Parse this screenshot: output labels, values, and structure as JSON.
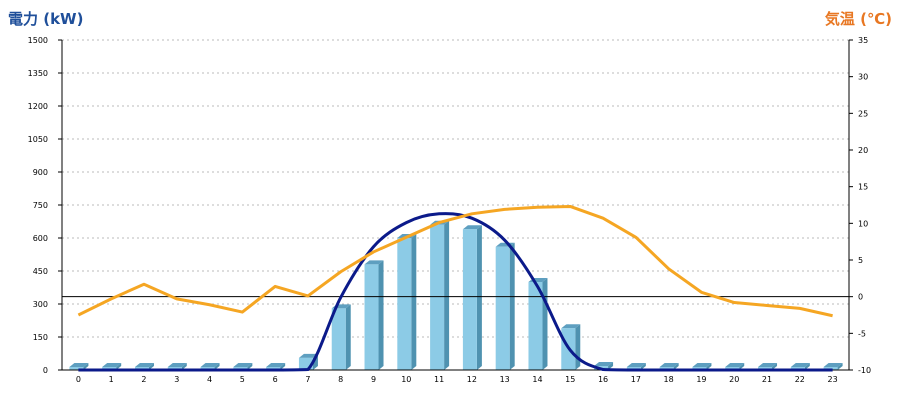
{
  "colors": {
    "left_title": "#1f4f9a",
    "right_title": "#e87722",
    "bar_front": "#8ccbe6",
    "bar_side": "#4f92b0",
    "bar_top": "#5e9fc0",
    "power_line": "#0b1a8a",
    "temp_line": "#f5a623",
    "grid": "#bbbbbb",
    "axis": "#000000"
  },
  "chart_data": {
    "type": "bar",
    "y_title_left": "電力 (kW)",
    "y_title_right": "気温 (℃)",
    "categories": [
      "0",
      "1",
      "2",
      "3",
      "4",
      "5",
      "6",
      "7",
      "8",
      "9",
      "10",
      "11",
      "12",
      "13",
      "14",
      "15",
      "16",
      "17",
      "18",
      "19",
      "20",
      "21",
      "22",
      "23"
    ],
    "ylim_left": [
      0,
      1500
    ],
    "yticks_left": [
      "1500",
      "1350",
      "1200",
      "1050",
      "900",
      "750",
      "600",
      "450",
      "300",
      "150",
      "0"
    ],
    "ylim_right": [
      -10,
      35
    ],
    "yticks_right": [
      "35",
      "30",
      "25",
      "20",
      "15",
      "10",
      "5",
      "0",
      "-5",
      "-10"
    ],
    "grid": true,
    "zero_line_right": 0,
    "series": [
      {
        "kind": "bar",
        "axis": "left",
        "values": [
          0,
          0,
          0,
          0,
          0,
          0,
          0,
          55,
          280,
          480,
          600,
          660,
          640,
          560,
          400,
          190,
          18,
          0,
          0,
          0,
          0,
          0,
          0,
          0
        ]
      },
      {
        "kind": "line",
        "axis": "left",
        "smooth": true,
        "values": [
          0,
          0,
          0,
          0,
          0,
          0,
          0,
          2,
          330,
          560,
          670,
          710,
          690,
          590,
          380,
          90,
          2,
          0,
          0,
          0,
          0,
          0,
          0,
          0
        ]
      },
      {
        "kind": "line",
        "axis": "right",
        "values": [
          -2.5,
          -0.3,
          1.7,
          -0.3,
          -1.1,
          -2.1,
          1.4,
          0.1,
          3.4,
          6.1,
          8.1,
          10.1,
          11.3,
          11.9,
          12.2,
          12.3,
          10.7,
          8.1,
          3.8,
          0.6,
          -0.8,
          -1.2,
          -1.6,
          -2.6
        ]
      }
    ]
  }
}
